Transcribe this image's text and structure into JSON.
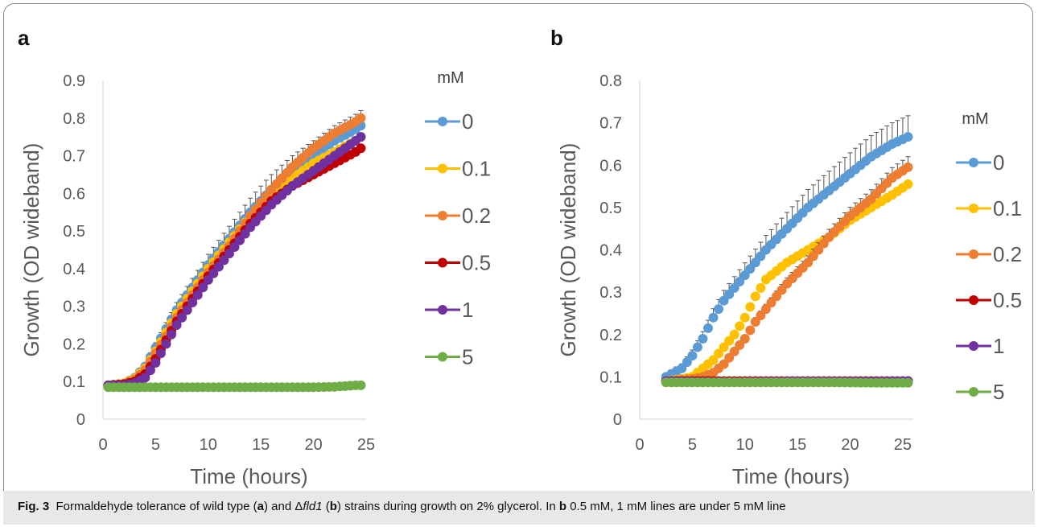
{
  "caption": {
    "fig_label": "Fig. 3",
    "text_1": "Formaldehyde tolerance of wild type (",
    "a": "a",
    "text_2": ") and Δ",
    "gene": "fld1",
    "text_3": " (",
    "b": "b",
    "text_4": ") strains during growth on 2% glycerol. In ",
    "b2": "b",
    "text_5": " 0.5 mM, 1 mM lines are under 5 mM line"
  },
  "chart_data": [
    {
      "panel": "a",
      "type": "scatter",
      "xlabel": "Time (hours)",
      "ylabel": "Growth (OD wideband)",
      "xlim": [
        0,
        25
      ],
      "ylim": [
        0,
        0.9
      ],
      "xticks": [
        "0",
        "5",
        "10",
        "15",
        "20",
        "25"
      ],
      "yticks": [
        "0",
        "0.1",
        "0.2",
        "0.3",
        "0.4",
        "0.5",
        "0.6",
        "0.7",
        "0.8",
        "0.9"
      ],
      "legend_title": "mM",
      "legend_position": "right",
      "series": [
        {
          "name": "0",
          "color": "#5B9BD5",
          "x": [
            0.5,
            2,
            3,
            4,
            5,
            6,
            7,
            8,
            10,
            12,
            14,
            16,
            18,
            20,
            22,
            24,
            24.5
          ],
          "y": [
            0.09,
            0.095,
            0.11,
            0.14,
            0.19,
            0.24,
            0.29,
            0.33,
            0.41,
            0.48,
            0.55,
            0.61,
            0.66,
            0.7,
            0.74,
            0.77,
            0.78
          ],
          "err": 0.04
        },
        {
          "name": "0.1",
          "color": "#FFC000",
          "x": [
            0.5,
            2,
            3,
            4,
            5,
            6,
            7,
            8,
            10,
            12,
            14,
            16,
            18,
            20,
            22,
            24,
            24.5
          ],
          "y": [
            0.09,
            0.095,
            0.108,
            0.135,
            0.18,
            0.23,
            0.28,
            0.32,
            0.4,
            0.47,
            0.54,
            0.6,
            0.64,
            0.68,
            0.71,
            0.74,
            0.75
          ],
          "err": 0
        },
        {
          "name": "0.2",
          "color": "#ED7D31",
          "x": [
            0.5,
            2,
            3,
            4,
            5,
            6,
            7,
            8,
            10,
            12,
            14,
            16,
            18,
            20,
            22,
            24,
            24.5
          ],
          "y": [
            0.09,
            0.094,
            0.105,
            0.13,
            0.175,
            0.22,
            0.27,
            0.31,
            0.39,
            0.46,
            0.54,
            0.61,
            0.67,
            0.72,
            0.76,
            0.79,
            0.8
          ],
          "err": 0
        },
        {
          "name": "0.5",
          "color": "#C00000",
          "x": [
            0.5,
            2,
            3,
            4,
            5,
            6,
            7,
            8,
            10,
            12,
            14,
            16,
            18,
            20,
            22,
            24,
            24.5
          ],
          "y": [
            0.09,
            0.093,
            0.1,
            0.12,
            0.16,
            0.21,
            0.26,
            0.3,
            0.38,
            0.45,
            0.52,
            0.58,
            0.62,
            0.65,
            0.68,
            0.71,
            0.72
          ],
          "err": 0
        },
        {
          "name": "1",
          "color": "#7030A0",
          "x": [
            0.5,
            2,
            3,
            4,
            5,
            6,
            7,
            8,
            10,
            12,
            14,
            16,
            18,
            20,
            22,
            24,
            24.5
          ],
          "y": [
            0.09,
            0.09,
            0.095,
            0.11,
            0.15,
            0.2,
            0.25,
            0.29,
            0.37,
            0.44,
            0.51,
            0.57,
            0.62,
            0.66,
            0.7,
            0.74,
            0.75
          ],
          "err": 0
        },
        {
          "name": "5",
          "color": "#70AD47",
          "x": [
            0.5,
            2,
            4,
            6,
            8,
            10,
            12,
            14,
            16,
            18,
            20,
            22,
            23,
            24,
            24.5
          ],
          "y": [
            0.085,
            0.085,
            0.085,
            0.085,
            0.085,
            0.085,
            0.085,
            0.085,
            0.085,
            0.085,
            0.085,
            0.086,
            0.088,
            0.09,
            0.09
          ],
          "err": 0
        }
      ]
    },
    {
      "panel": "b",
      "type": "scatter",
      "xlabel": "Time (hours)",
      "ylabel": "Growth (OD wideband)",
      "xlim": [
        0,
        26
      ],
      "ylim": [
        0,
        0.8
      ],
      "xticks": [
        "0",
        "5",
        "10",
        "15",
        "20",
        "25"
      ],
      "yticks": [
        "0",
        "0.1",
        "0.2",
        "0.3",
        "0.4",
        "0.5",
        "0.6",
        "0.7",
        "0.8"
      ],
      "legend_title": "mM",
      "legend_position": "right",
      "series": [
        {
          "name": "0",
          "color": "#5B9BD5",
          "x": [
            2.5,
            4,
            5,
            6,
            7,
            8,
            9,
            10,
            12,
            14,
            16,
            18,
            20,
            22,
            24,
            25.8
          ],
          "y": [
            0.1,
            0.12,
            0.15,
            0.19,
            0.24,
            0.28,
            0.31,
            0.34,
            0.4,
            0.45,
            0.5,
            0.54,
            0.58,
            0.62,
            0.65,
            0.67
          ],
          "err": 0.05
        },
        {
          "name": "0.1",
          "color": "#FFC000",
          "x": [
            2.5,
            4,
            5,
            6,
            7,
            8,
            9,
            10,
            11,
            12,
            14,
            16,
            18,
            20,
            22,
            24,
            25.8
          ],
          "y": [
            0.09,
            0.095,
            0.1,
            0.12,
            0.14,
            0.17,
            0.2,
            0.24,
            0.29,
            0.33,
            0.37,
            0.4,
            0.43,
            0.47,
            0.5,
            0.53,
            0.56
          ],
          "err": 0
        },
        {
          "name": "0.2",
          "color": "#ED7D31",
          "x": [
            2.5,
            4,
            5,
            6,
            7,
            8,
            9,
            10,
            11,
            12,
            14,
            16,
            18,
            20,
            22,
            24,
            25.8
          ],
          "y": [
            0.09,
            0.093,
            0.095,
            0.1,
            0.11,
            0.13,
            0.16,
            0.19,
            0.23,
            0.26,
            0.32,
            0.37,
            0.43,
            0.48,
            0.52,
            0.57,
            0.6
          ],
          "err": 0.025
        },
        {
          "name": "0.5",
          "color": "#C00000",
          "x": [
            2.5,
            6,
            10,
            14,
            18,
            22,
            25.8
          ],
          "y": [
            0.09,
            0.09,
            0.09,
            0.09,
            0.09,
            0.09,
            0.09
          ],
          "err": 0
        },
        {
          "name": "1",
          "color": "#7030A0",
          "x": [
            2.5,
            6,
            10,
            14,
            18,
            22,
            25.8
          ],
          "y": [
            0.09,
            0.088,
            0.088,
            0.089,
            0.089,
            0.089,
            0.09
          ],
          "err": 0
        },
        {
          "name": "5",
          "color": "#70AD47",
          "x": [
            2.5,
            6,
            10,
            14,
            18,
            22,
            25.8
          ],
          "y": [
            0.087,
            0.087,
            0.087,
            0.087,
            0.087,
            0.086,
            0.086
          ],
          "err": 0
        }
      ]
    }
  ]
}
